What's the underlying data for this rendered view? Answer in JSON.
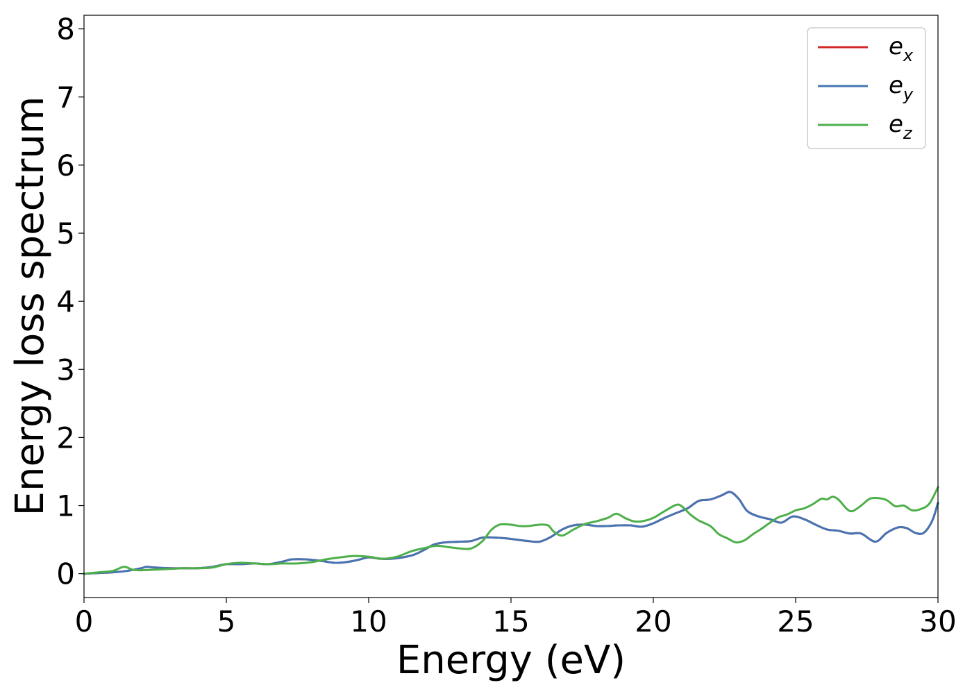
{
  "chart_data": {
    "type": "line",
    "xlabel": "Energy (eV)",
    "ylabel": "Energy loss spectrum",
    "xlim": [
      0,
      30
    ],
    "ylim": [
      -0.35,
      8.2
    ],
    "xticks": [
      0,
      5,
      10,
      15,
      20,
      25,
      30
    ],
    "yticks": [
      0,
      1,
      2,
      3,
      4,
      5,
      6,
      7,
      8
    ],
    "grid": false,
    "legend": "top-right",
    "series": [
      {
        "name": "e",
        "sub": "x",
        "color": "#d62728",
        "x": [
          0,
          0.5,
          1,
          1.5,
          2,
          2.2,
          2.5,
          3,
          3.5,
          4,
          4.5,
          5,
          5.5,
          6,
          6.5,
          7,
          7.3,
          7.8,
          8.3,
          8.8,
          9.2,
          9.6,
          10,
          10.4,
          10.8,
          11.2,
          11.6,
          12,
          12.3,
          12.7,
          13.2,
          13.6,
          14,
          14.4,
          14.8,
          15.2,
          15.6,
          16,
          16.4,
          16.8,
          17.2,
          17.6,
          18,
          18.4,
          18.8,
          19.2,
          19.6,
          20,
          20.4,
          20.8,
          21.2,
          21.6,
          22,
          22.4,
          22.7,
          23,
          23.3,
          23.7,
          24.1,
          24.5,
          24.9,
          25.3,
          25.7,
          26.1,
          26.5,
          26.9,
          27.3,
          27.8,
          28.2,
          28.6,
          28.9,
          29.2,
          29.5,
          29.8,
          30
        ],
        "y": [
          0,
          0.01,
          0.02,
          0.04,
          0.08,
          0.1,
          0.09,
          0.08,
          0.08,
          0.08,
          0.1,
          0.14,
          0.14,
          0.15,
          0.14,
          0.18,
          0.21,
          0.21,
          0.19,
          0.16,
          0.17,
          0.2,
          0.24,
          0.22,
          0.22,
          0.24,
          0.28,
          0.36,
          0.43,
          0.46,
          0.47,
          0.48,
          0.53,
          0.53,
          0.52,
          0.5,
          0.48,
          0.47,
          0.54,
          0.65,
          0.71,
          0.72,
          0.7,
          0.7,
          0.71,
          0.71,
          0.69,
          0.74,
          0.82,
          0.89,
          0.96,
          1.07,
          1.09,
          1.15,
          1.2,
          1.1,
          0.92,
          0.84,
          0.8,
          0.75,
          0.84,
          0.8,
          0.72,
          0.65,
          0.63,
          0.59,
          0.59,
          0.47,
          0.6,
          0.68,
          0.67,
          0.6,
          0.6,
          0.78,
          1.04
        ]
      },
      {
        "name": "e",
        "sub": "y",
        "color": "#4575b4",
        "x": [
          0,
          0.5,
          1,
          1.5,
          2,
          2.2,
          2.5,
          3,
          3.5,
          4,
          4.5,
          5,
          5.5,
          6,
          6.5,
          7,
          7.3,
          7.8,
          8.3,
          8.8,
          9.2,
          9.6,
          10,
          10.4,
          10.8,
          11.2,
          11.6,
          12,
          12.3,
          12.7,
          13.2,
          13.6,
          14,
          14.4,
          14.8,
          15.2,
          15.6,
          16,
          16.4,
          16.8,
          17.2,
          17.6,
          18,
          18.4,
          18.8,
          19.2,
          19.6,
          20,
          20.4,
          20.8,
          21.2,
          21.6,
          22,
          22.4,
          22.7,
          23,
          23.3,
          23.7,
          24.1,
          24.5,
          24.9,
          25.3,
          25.7,
          26.1,
          26.5,
          26.9,
          27.3,
          27.8,
          28.2,
          28.6,
          28.9,
          29.2,
          29.5,
          29.8,
          30
        ],
        "y": [
          0,
          0.01,
          0.02,
          0.04,
          0.08,
          0.1,
          0.09,
          0.08,
          0.08,
          0.08,
          0.1,
          0.14,
          0.14,
          0.15,
          0.14,
          0.18,
          0.21,
          0.21,
          0.19,
          0.16,
          0.17,
          0.2,
          0.24,
          0.22,
          0.22,
          0.24,
          0.28,
          0.36,
          0.43,
          0.46,
          0.47,
          0.48,
          0.53,
          0.53,
          0.52,
          0.5,
          0.48,
          0.47,
          0.54,
          0.65,
          0.71,
          0.72,
          0.7,
          0.7,
          0.71,
          0.71,
          0.69,
          0.74,
          0.82,
          0.89,
          0.96,
          1.07,
          1.09,
          1.15,
          1.2,
          1.1,
          0.92,
          0.84,
          0.8,
          0.75,
          0.84,
          0.8,
          0.72,
          0.65,
          0.63,
          0.59,
          0.59,
          0.47,
          0.6,
          0.68,
          0.67,
          0.6,
          0.6,
          0.78,
          1.04
        ]
      },
      {
        "name": "e",
        "sub": "z",
        "color": "#4daf4a",
        "x": [
          0,
          0.5,
          1,
          1.4,
          1.7,
          2,
          2.5,
          3,
          3.5,
          4,
          4.5,
          5,
          5.5,
          6,
          6.5,
          7,
          7.5,
          8,
          8.5,
          9,
          9.5,
          10,
          10.5,
          11,
          11.5,
          12,
          12.4,
          12.8,
          13.2,
          13.6,
          14,
          14.3,
          14.6,
          15,
          15.3,
          15.6,
          16,
          16.3,
          16.5,
          16.8,
          17.2,
          17.6,
          18,
          18.4,
          18.7,
          19,
          19.3,
          19.6,
          20,
          20.4,
          20.8,
          21,
          21.3,
          21.6,
          22,
          22.3,
          22.6,
          22.9,
          23.2,
          23.5,
          23.8,
          24.1,
          24.4,
          24.7,
          25,
          25.3,
          25.6,
          25.9,
          26.1,
          26.3,
          26.5,
          26.8,
          27,
          27.3,
          27.6,
          27.9,
          28.2,
          28.5,
          28.8,
          29.1,
          29.4,
          29.7,
          30
        ],
        "y": [
          0,
          0.02,
          0.04,
          0.1,
          0.06,
          0.05,
          0.06,
          0.07,
          0.08,
          0.08,
          0.09,
          0.14,
          0.16,
          0.15,
          0.14,
          0.15,
          0.15,
          0.17,
          0.21,
          0.24,
          0.26,
          0.25,
          0.22,
          0.25,
          0.33,
          0.38,
          0.41,
          0.39,
          0.37,
          0.37,
          0.48,
          0.64,
          0.72,
          0.72,
          0.7,
          0.7,
          0.72,
          0.71,
          0.62,
          0.56,
          0.65,
          0.73,
          0.77,
          0.82,
          0.88,
          0.82,
          0.77,
          0.77,
          0.82,
          0.92,
          1.01,
          0.99,
          0.87,
          0.78,
          0.7,
          0.58,
          0.52,
          0.46,
          0.49,
          0.58,
          0.66,
          0.75,
          0.83,
          0.87,
          0.93,
          0.96,
          1.02,
          1.1,
          1.09,
          1.13,
          1.09,
          0.95,
          0.92,
          1.0,
          1.1,
          1.11,
          1.08,
          0.99,
          1.0,
          0.93,
          0.95,
          1.03,
          1.27
        ]
      }
    ]
  }
}
